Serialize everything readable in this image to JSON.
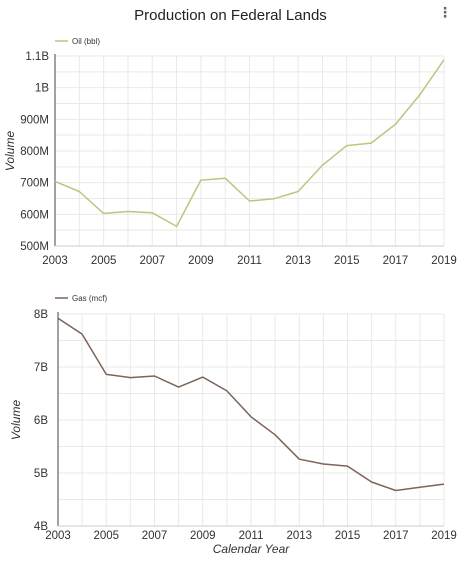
{
  "header": {
    "title": "Production on Federal Lands",
    "menu_icon": "vertical-dots-icon"
  },
  "chart_data": [
    {
      "type": "line",
      "legend": {
        "label": "Oil (bbl)",
        "position": "top-left"
      },
      "series": [
        {
          "name": "Oil (bbl)",
          "color": "#b5c97e",
          "x": [
            2003,
            2004,
            2005,
            2006,
            2007,
            2008,
            2009,
            2010,
            2011,
            2012,
            2013,
            2014,
            2015,
            2016,
            2017,
            2018,
            2019
          ],
          "y": [
            704,
            672,
            603,
            609,
            605,
            562,
            708,
            714,
            642,
            649,
            672,
            755,
            817,
            825,
            884,
            977,
            1088
          ]
        }
      ],
      "ylabel": "Volume",
      "xlabel": "",
      "xlim": [
        2003,
        2019
      ],
      "ylim": [
        500,
        1100
      ],
      "y_unit": "millions",
      "xticks": [
        2003,
        2005,
        2007,
        2009,
        2011,
        2013,
        2015,
        2017,
        2019
      ],
      "xtick_labels": [
        "2003",
        "2005",
        "2007",
        "2009",
        "2011",
        "2013",
        "2015",
        "2017",
        "2019"
      ],
      "yticks": [
        500,
        600,
        700,
        800,
        900,
        1000,
        1100
      ],
      "ytick_labels": [
        "500M",
        "600M",
        "700M",
        "800M",
        "900M",
        "1B",
        "1.1B"
      ],
      "grid": true
    },
    {
      "type": "line",
      "legend": {
        "label": "Gas (mcf)",
        "position": "top-left"
      },
      "series": [
        {
          "name": "Gas (mcf)",
          "color": "#7d6357",
          "x": [
            2003,
            2004,
            2005,
            2006,
            2007,
            2008,
            2009,
            2010,
            2011,
            2012,
            2013,
            2014,
            2015,
            2016,
            2017,
            2018,
            2019
          ],
          "y": [
            7.92,
            7.62,
            6.86,
            6.8,
            6.83,
            6.62,
            6.81,
            6.55,
            6.06,
            5.72,
            5.26,
            5.17,
            5.13,
            4.83,
            4.67,
            4.73,
            4.79
          ]
        }
      ],
      "ylabel": "Volume",
      "xlabel": "Calendar Year",
      "xlim": [
        2003,
        2019
      ],
      "ylim": [
        4,
        8
      ],
      "y_unit": "billions",
      "xticks": [
        2003,
        2005,
        2007,
        2009,
        2011,
        2013,
        2015,
        2017,
        2019
      ],
      "xtick_labels": [
        "2003",
        "2005",
        "2007",
        "2009",
        "2011",
        "2013",
        "2015",
        "2017",
        "2019"
      ],
      "yticks": [
        4,
        5,
        6,
        7,
        8
      ],
      "ytick_labels": [
        "4B",
        "5B",
        "6B",
        "7B",
        "8B"
      ],
      "grid": true
    }
  ]
}
